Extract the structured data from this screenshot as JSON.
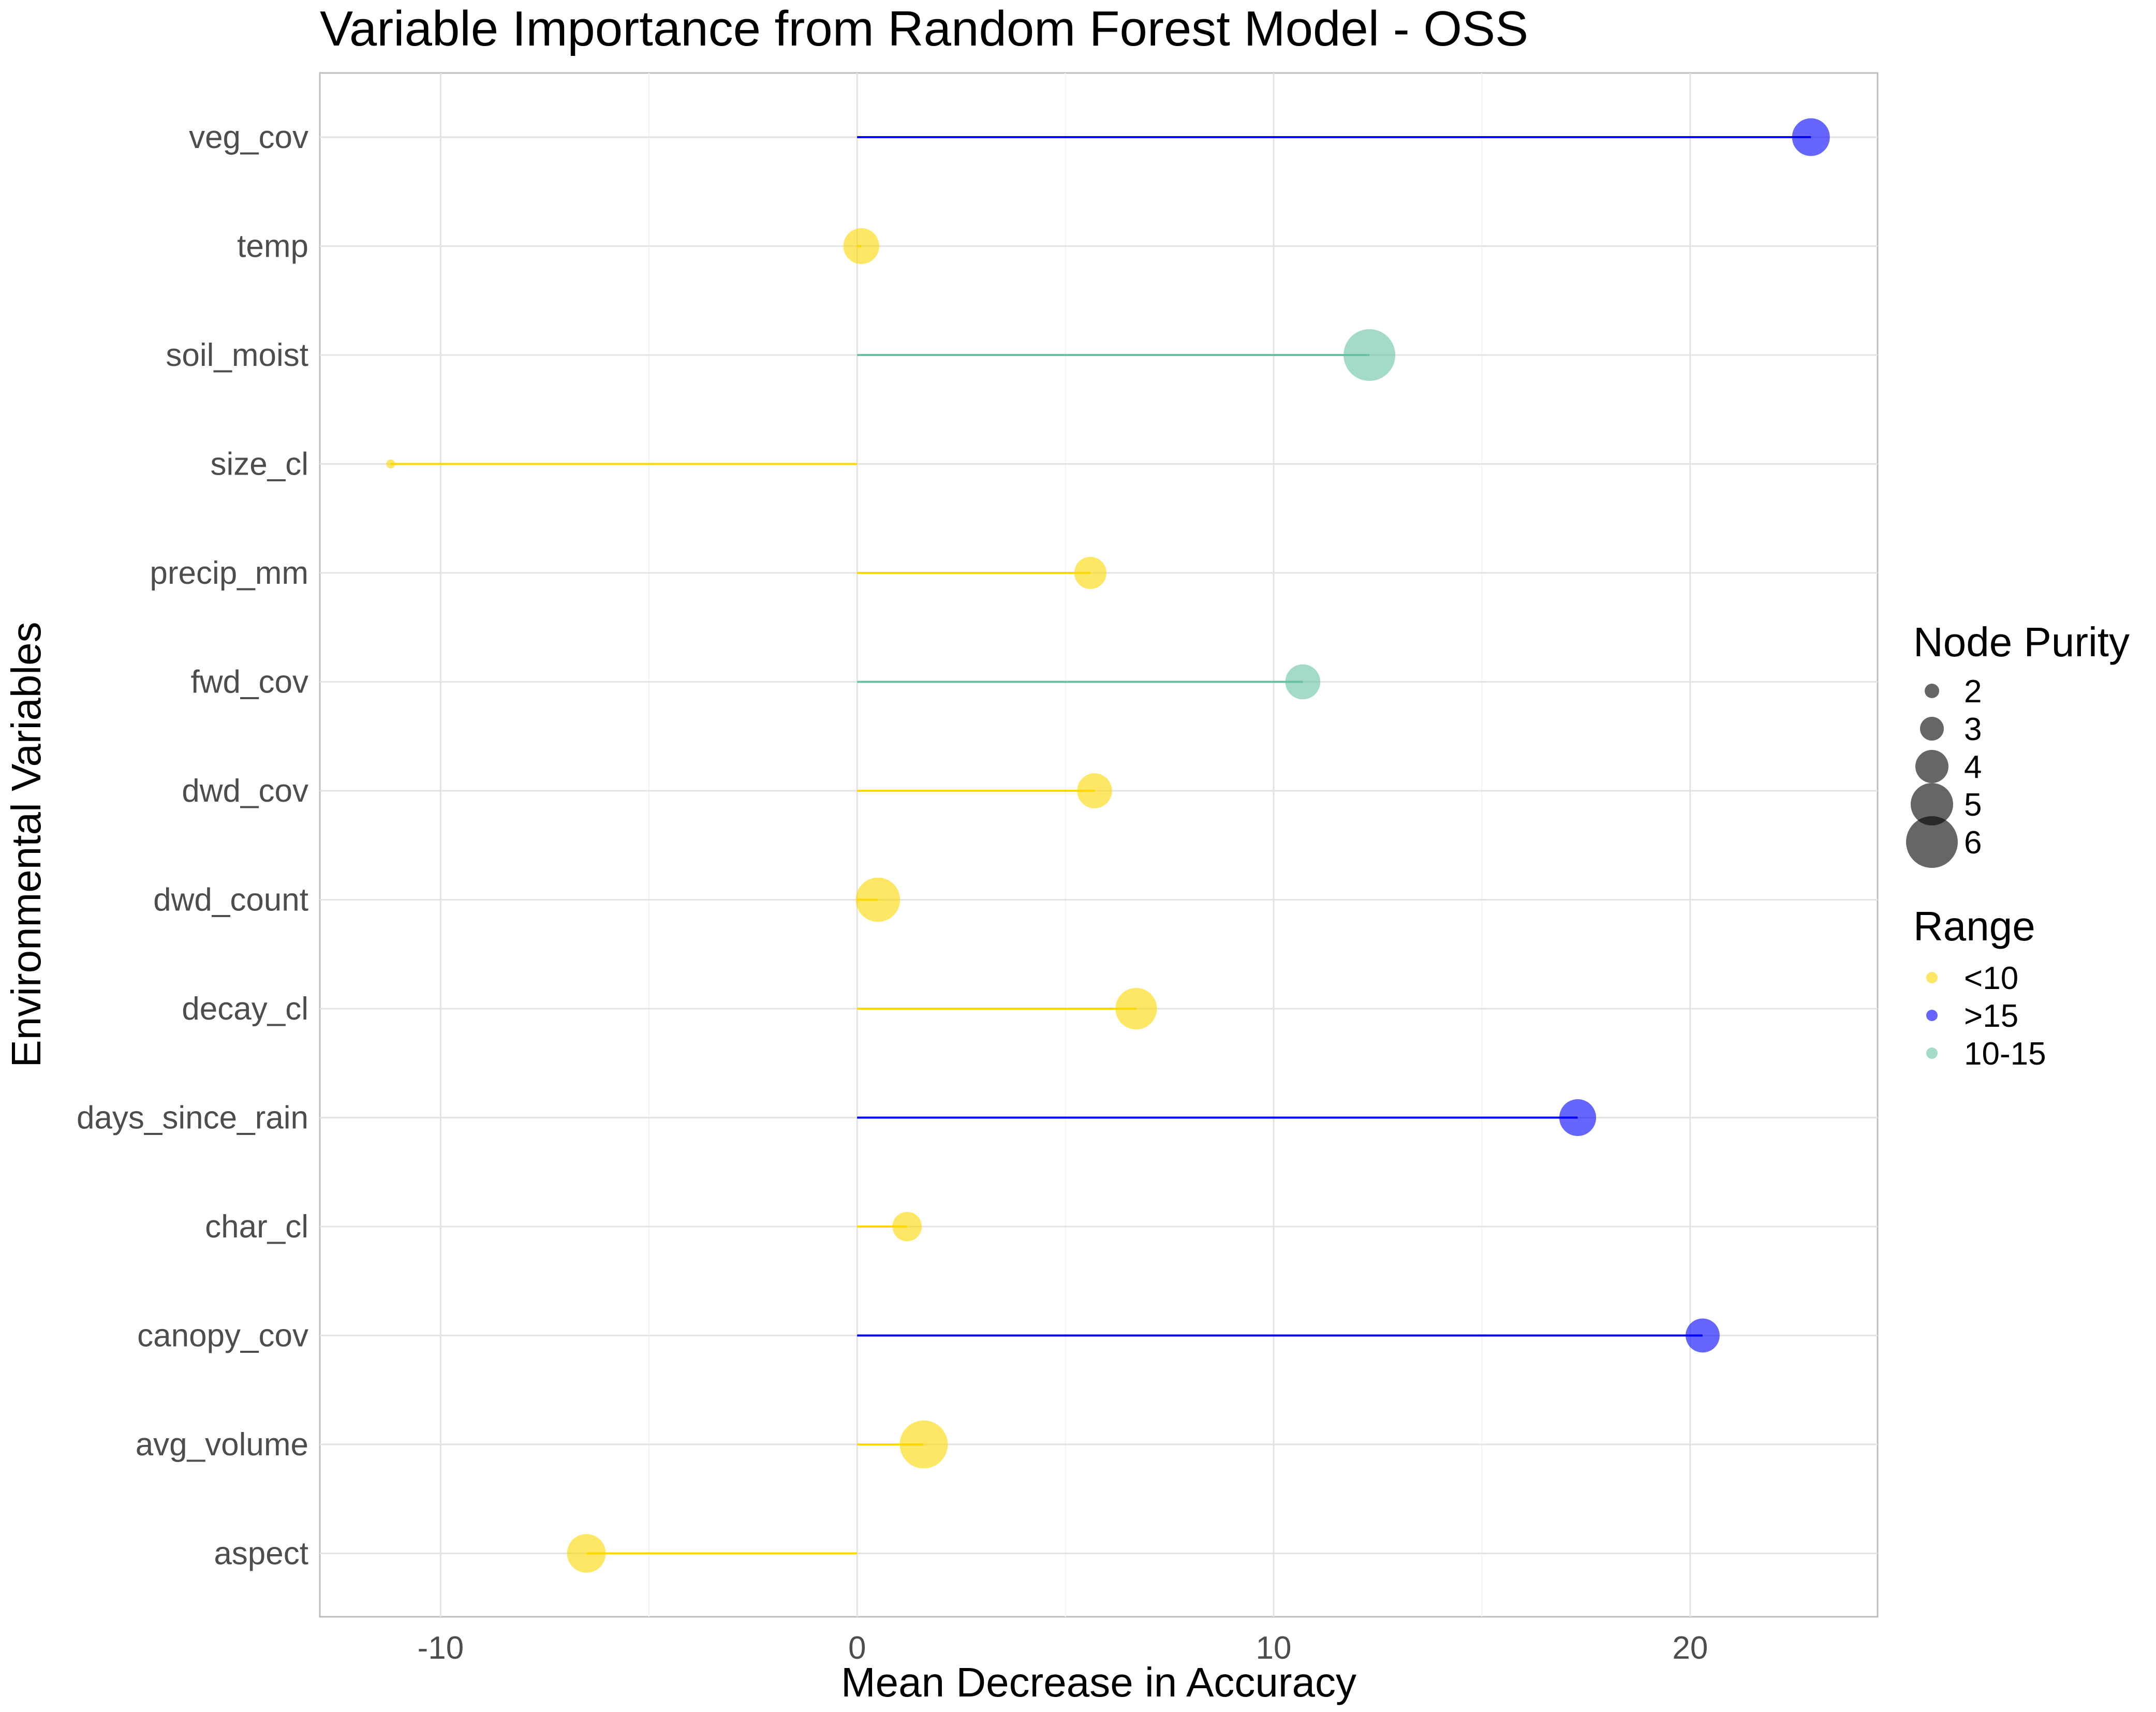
{
  "chart_data": {
    "type": "lollipop",
    "title": "Variable Importance from Random Forest Model - OSS",
    "xlabel": "Mean Decrease in Accuracy",
    "ylabel": "Environmental Variables",
    "xlim": [
      -12.9,
      24.5
    ],
    "x_ticks": [
      -10,
      0,
      10,
      20
    ],
    "x_tick_labels": [
      "-10",
      "0",
      "10",
      "20"
    ],
    "grid": true,
    "categories": [
      "veg_cov",
      "temp",
      "soil_moist",
      "size_cl",
      "precip_mm",
      "fwd_cov",
      "dwd_cov",
      "dwd_count",
      "decay_cl",
      "days_since_rain",
      "char_cl",
      "canopy_cov",
      "avg_volume",
      "aspect"
    ],
    "values": [
      22.9,
      0.1,
      12.3,
      -11.2,
      5.6,
      10.7,
      5.7,
      0.5,
      6.7,
      17.3,
      1.2,
      20.3,
      1.6,
      -6.5
    ],
    "node_purity": [
      4.5,
      4.3,
      6.0,
      1.4,
      3.9,
      4.2,
      4.2,
      5.2,
      4.9,
      4.4,
      3.6,
      4.1,
      5.6,
      4.6
    ],
    "range_group": [
      ">15",
      "<10",
      "10-15",
      "<10",
      "<10",
      "10-15",
      "<10",
      "<10",
      "<10",
      ">15",
      "<10",
      ">15",
      "<10",
      "<10"
    ],
    "legend": {
      "position": "right",
      "size": {
        "title": "Node Purity",
        "labels": [
          "2",
          "3",
          "4",
          "5",
          "6"
        ],
        "values": [
          2,
          3,
          4,
          5,
          6
        ]
      },
      "color": {
        "title": "Range",
        "labels": [
          "<10",
          ">15",
          "10-15"
        ],
        "colors": {
          "<10": "#FFD700",
          ">15": "#0000FF",
          "10-15": "#66C2A5"
        }
      }
    }
  }
}
